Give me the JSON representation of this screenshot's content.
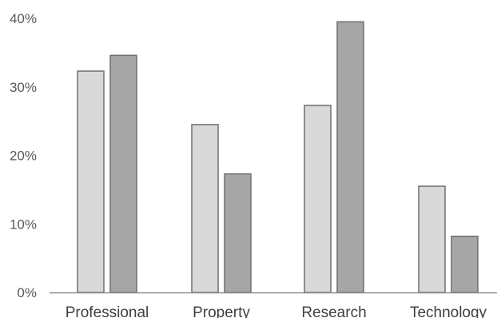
{
  "chart_data": {
    "type": "bar",
    "categories": [
      "Professional",
      "Property",
      "Research",
      "Technology"
    ],
    "series": [
      {
        "values": [
          32.3,
          24.5,
          27.3,
          15.5
        ],
        "color": "#d9d9d9",
        "stroke": "#6f6f6f"
      },
      {
        "values": [
          34.6,
          17.3,
          39.5,
          8.2
        ],
        "color": "#a6a6a6",
        "stroke": "#6f6f6f"
      }
    ],
    "ylim": [
      0,
      40
    ],
    "yticks": [
      0,
      10,
      20,
      30,
      40
    ],
    "ytick_labels": [
      "0%",
      "10%",
      "20%",
      "30%",
      "40%"
    ],
    "title": "",
    "xlabel": "",
    "ylabel": "",
    "grid": false,
    "legend": "none"
  }
}
